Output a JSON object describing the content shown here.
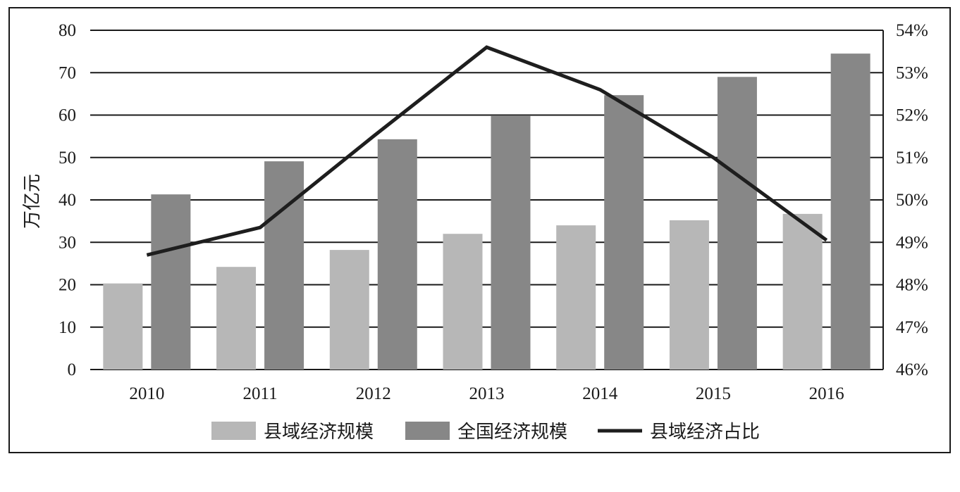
{
  "chart_data": {
    "type": "bar",
    "categories": [
      "2010",
      "2011",
      "2012",
      "2013",
      "2014",
      "2015",
      "2016"
    ],
    "ylabel": "万亿元",
    "ylim": [
      0,
      80
    ],
    "yticks": [
      "0",
      "10",
      "20",
      "30",
      "40",
      "50",
      "60",
      "70",
      "80"
    ],
    "y2lim": [
      46,
      54
    ],
    "y2ticks": [
      "46%",
      "47%",
      "48%",
      "49%",
      "50%",
      "51%",
      "52%",
      "53%",
      "54%"
    ],
    "grid": true,
    "legend_position": "bottom",
    "series": [
      {
        "name": "县域经济规模",
        "kind": "bar",
        "axis": "left",
        "color": "#b7b7b7",
        "values": [
          20.3,
          24.2,
          28.2,
          32.0,
          34.0,
          35.2,
          36.7
        ]
      },
      {
        "name": "全国经济规模",
        "kind": "bar",
        "axis": "left",
        "color": "#878787",
        "values": [
          41.3,
          49.1,
          54.3,
          59.9,
          64.7,
          69.0,
          74.5
        ]
      },
      {
        "name": "县域经济占比",
        "kind": "line",
        "axis": "right",
        "color": "#1e1e1e",
        "values": [
          48.7,
          49.35,
          51.5,
          53.6,
          52.6,
          51.0,
          49.05
        ]
      }
    ]
  }
}
